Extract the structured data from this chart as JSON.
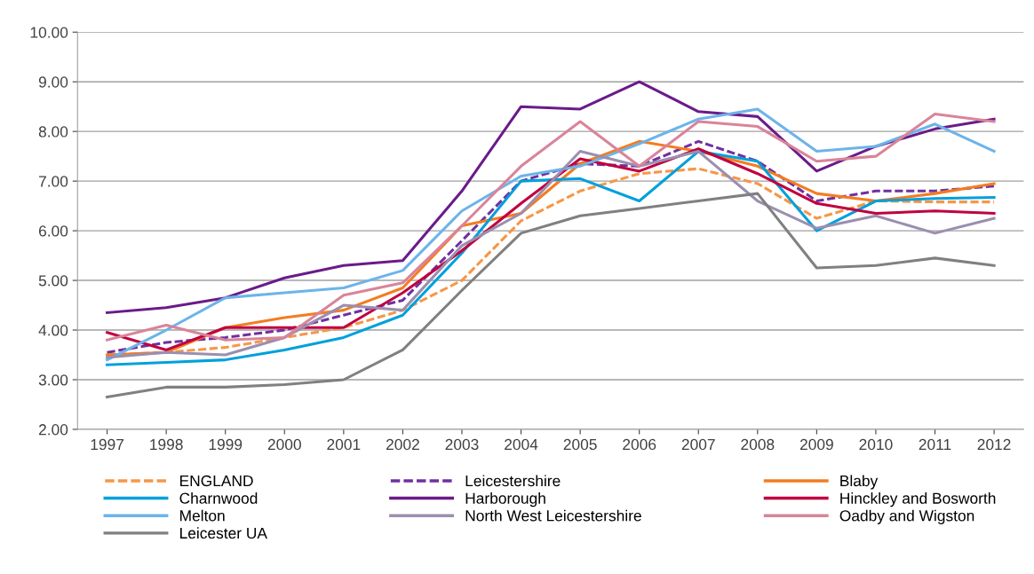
{
  "chart_data": {
    "type": "line",
    "categories": [
      "1997",
      "1998",
      "1999",
      "2000",
      "2001",
      "2002",
      "2003",
      "2004",
      "2005",
      "2006",
      "2007",
      "2008",
      "2009",
      "2010",
      "2011",
      "2012"
    ],
    "ylim": [
      2,
      10
    ],
    "yticks": [
      {
        "value": 2,
        "label": "2.00"
      },
      {
        "value": 3,
        "label": "3.00"
      },
      {
        "value": 4,
        "label": "4.00"
      },
      {
        "value": 5,
        "label": "5.00"
      },
      {
        "value": 6,
        "label": "6.00"
      },
      {
        "value": 7,
        "label": "7.00"
      },
      {
        "value": 8,
        "label": "8.00"
      },
      {
        "value": 9,
        "label": "9.00"
      },
      {
        "value": 10,
        "label": "10.00"
      }
    ],
    "grid": "y",
    "legend": "bottom",
    "marker": "none",
    "series": [
      {
        "name": "ENGLAND",
        "color": "#f79646",
        "line_style": "dashed",
        "values": [
          3.5,
          3.55,
          3.65,
          3.85,
          4.05,
          4.4,
          5.0,
          6.2,
          6.8,
          7.15,
          7.25,
          6.95,
          6.25,
          6.6,
          6.58,
          6.58
        ]
      },
      {
        "name": "Leicestershire",
        "color": "#7030a0",
        "line_style": "dashed",
        "values": [
          3.55,
          3.75,
          3.85,
          4.0,
          4.3,
          4.6,
          5.8,
          7.0,
          7.35,
          7.3,
          7.8,
          7.4,
          6.6,
          6.8,
          6.8,
          6.9
        ]
      },
      {
        "name": "Blaby",
        "color": "#f47c20",
        "line_style": "solid",
        "values": [
          3.5,
          3.55,
          4.05,
          4.25,
          4.4,
          4.85,
          6.1,
          6.35,
          7.35,
          7.8,
          7.6,
          7.3,
          6.75,
          6.6,
          6.75,
          6.95
        ]
      },
      {
        "name": "Charnwood",
        "color": "#00a0dc",
        "line_style": "solid",
        "values": [
          3.3,
          3.35,
          3.4,
          3.6,
          3.85,
          4.3,
          5.55,
          7.0,
          7.05,
          6.6,
          7.6,
          7.4,
          6.0,
          6.6,
          6.65,
          6.67
        ]
      },
      {
        "name": "Harborough",
        "color": "#6a1b8a",
        "line_style": "solid",
        "values": [
          4.35,
          4.45,
          4.65,
          5.05,
          5.3,
          5.4,
          6.8,
          8.5,
          8.45,
          9.0,
          8.4,
          8.3,
          7.2,
          7.7,
          8.05,
          8.25
        ]
      },
      {
        "name": "Hinckley and Bosworth",
        "color": "#c00040",
        "line_style": "solid",
        "values": [
          3.95,
          3.6,
          4.05,
          4.05,
          4.05,
          4.75,
          5.6,
          6.55,
          7.45,
          7.2,
          7.65,
          7.15,
          6.55,
          6.35,
          6.4,
          6.35
        ]
      },
      {
        "name": "Melton",
        "color": "#6cb4ea",
        "line_style": "solid",
        "values": [
          3.4,
          4.0,
          4.65,
          4.75,
          4.85,
          5.2,
          6.4,
          7.1,
          7.3,
          7.75,
          8.25,
          8.45,
          7.6,
          7.7,
          8.15,
          7.6
        ]
      },
      {
        "name": "North West Leicestershire",
        "color": "#9b8fb0",
        "line_style": "solid",
        "values": [
          3.45,
          3.55,
          3.5,
          3.85,
          4.5,
          4.4,
          5.7,
          6.35,
          7.6,
          7.3,
          7.6,
          6.6,
          6.05,
          6.3,
          5.95,
          6.25
        ]
      },
      {
        "name": "Oadby and Wigston",
        "color": "#d9849a",
        "line_style": "solid",
        "values": [
          3.8,
          4.1,
          3.8,
          3.85,
          4.7,
          4.95,
          6.1,
          7.3,
          8.2,
          7.3,
          8.2,
          8.1,
          7.4,
          7.5,
          8.35,
          8.2
        ]
      },
      {
        "name": "Leicester UA",
        "color": "#808080",
        "line_style": "solid",
        "values": [
          2.65,
          2.85,
          2.85,
          2.9,
          3.0,
          3.6,
          4.8,
          5.95,
          6.3,
          6.45,
          6.6,
          6.75,
          5.25,
          5.3,
          5.45,
          5.3
        ]
      }
    ]
  }
}
